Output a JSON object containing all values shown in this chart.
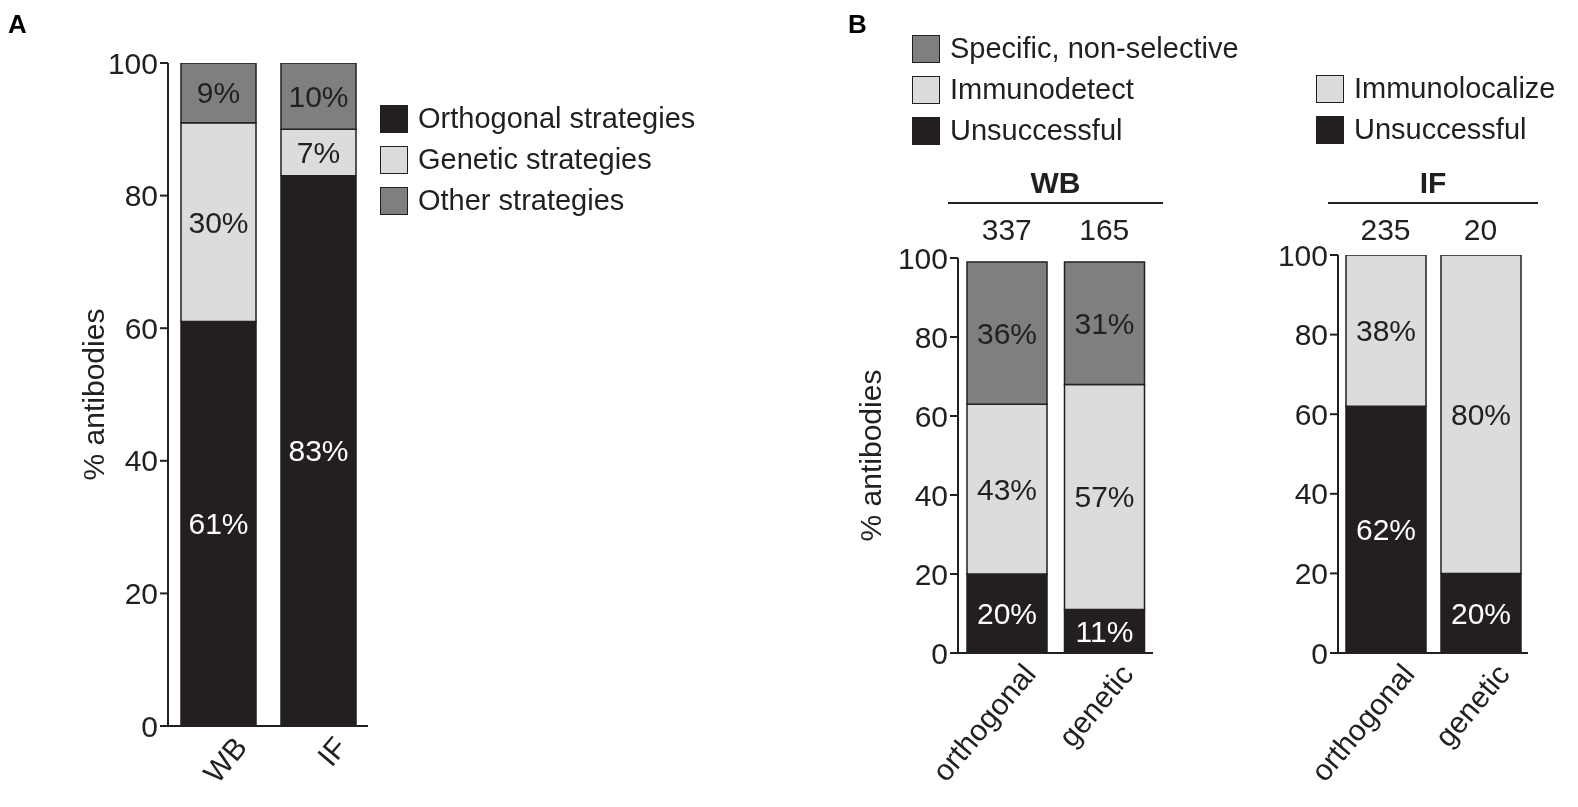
{
  "chart_data": [
    {
      "type": "bar",
      "stacked": true,
      "categories": [
        "WB",
        "IF"
      ],
      "ylabel": "% antibodies",
      "ylim": [
        0,
        100
      ],
      "yticks": [
        0,
        20,
        40,
        60,
        80,
        100
      ],
      "grid": false,
      "legend": "top right",
      "annotations": [
        "A"
      ],
      "series": [
        {
          "name": "Orthogonal strategies",
          "color": "#231f20",
          "values": [
            61,
            83
          ],
          "value_labels": [
            "61%",
            "83%"
          ]
        },
        {
          "name": "Genetic strategies",
          "color": "#dcdcdc",
          "values": [
            30,
            7
          ],
          "value_labels": [
            "30%",
            "7%"
          ]
        },
        {
          "name": "Other strategies",
          "color": "#7f7f7f",
          "values": [
            9,
            10
          ],
          "value_labels": [
            "9%",
            "10%"
          ]
        }
      ]
    },
    {
      "type": "bar",
      "stacked": true,
      "title": "WB",
      "categories": [
        "orthogonal",
        "genetic"
      ],
      "ylabel": "% antibodies",
      "ylim": [
        0,
        100
      ],
      "yticks": [
        0,
        20,
        40,
        60,
        80,
        100
      ],
      "grid": false,
      "legend": "top",
      "annotations": [
        "B",
        "337",
        "165"
      ],
      "series": [
        {
          "name": "Unsuccessful",
          "color": "#231f20",
          "values": [
            20,
            11
          ],
          "value_labels": [
            "20%",
            "11%"
          ]
        },
        {
          "name": "Immunodetect",
          "color": "#dcdcdc",
          "values": [
            43,
            57
          ],
          "value_labels": [
            "43%",
            "57%"
          ]
        },
        {
          "name": "Specific, non-selective",
          "color": "#7f7f7f",
          "values": [
            36,
            31
          ],
          "value_labels": [
            "36%",
            "31%"
          ]
        }
      ]
    },
    {
      "type": "bar",
      "stacked": true,
      "title": "IF",
      "categories": [
        "orthogonal",
        "genetic"
      ],
      "ylim": [
        0,
        100
      ],
      "yticks": [
        0,
        20,
        40,
        60,
        80,
        100
      ],
      "grid": false,
      "legend": "top",
      "annotations": [
        "235",
        "20"
      ],
      "series": [
        {
          "name": "Unsuccessful",
          "color": "#231f20",
          "values": [
            62,
            20
          ],
          "value_labels": [
            "62%",
            "20%"
          ]
        },
        {
          "name": "Immunolocalize",
          "color": "#dcdcdc",
          "values": [
            38,
            80
          ],
          "value_labels": [
            "38%",
            "80%"
          ]
        }
      ]
    }
  ]
}
